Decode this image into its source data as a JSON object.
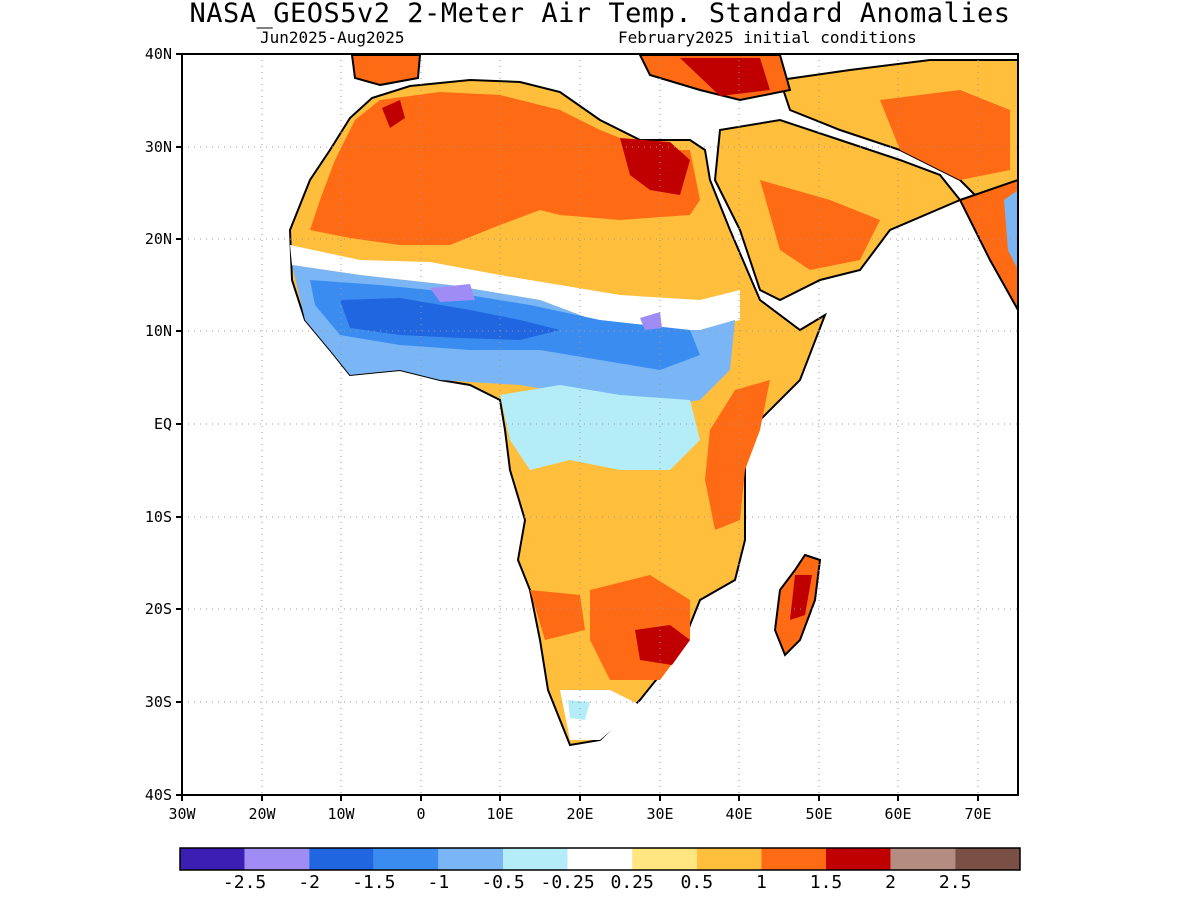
{
  "title": "NASA_GEOS5v2 2-Meter Air Temp. Standard Anomalies",
  "subtitle_left": "Jun2025-Aug2025",
  "subtitle_right": "February2025 initial conditions",
  "map": {
    "lat_labels": [
      "40N",
      "30N",
      "20N",
      "10N",
      "EQ",
      "10S",
      "20S",
      "30S",
      "40S"
    ],
    "lon_labels": [
      "30W",
      "20W",
      "10W",
      "0",
      "10E",
      "20E",
      "30E",
      "40E",
      "50E",
      "60E",
      "70E"
    ],
    "grid": "dotted",
    "extent": {
      "lon": [
        -30,
        75
      ],
      "lat": [
        -40,
        40
      ]
    }
  },
  "colorbar": {
    "colors": [
      "#3b1fb5",
      "#a08cf5",
      "#1f66e0",
      "#3b8cf0",
      "#7ab6f5",
      "#b4ecf8",
      "#ffffff",
      "#ffe680",
      "#ffbe3c",
      "#ff6a14",
      "#c00000",
      "#b48c82",
      "#7a5046"
    ],
    "labels": [
      "-2.5",
      "-2",
      "-1.5",
      "-1",
      "-0.5",
      "-0.25",
      "0.25",
      "0.5",
      "1",
      "1.5",
      "2",
      "2.5"
    ]
  }
}
